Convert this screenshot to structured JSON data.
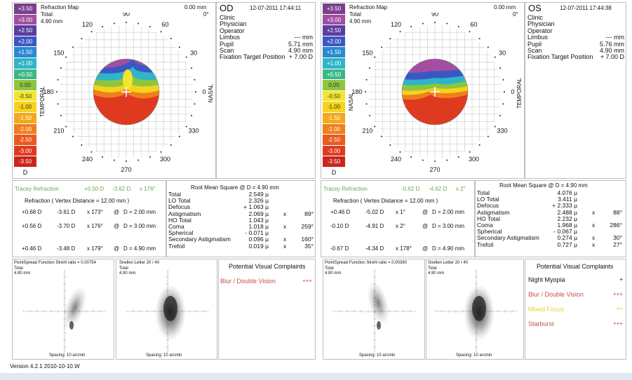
{
  "legend_values": [
    "+3.50",
    "+3.00",
    "+2.50",
    "+2.00",
    "+1.50",
    "+1.00",
    "+0.50",
    "0.00",
    "-0.50",
    "-1.00",
    "-1.50",
    "-2.00",
    "-2.50",
    "-3.00",
    "-3.50",
    "D"
  ],
  "legend_colors": [
    "#7b3f8c",
    "#a24fa1",
    "#5b3ea0",
    "#3b57c4",
    "#2a8ad0",
    "#2fb5c7",
    "#3cb886",
    "#8cc63f",
    "#f3e62a",
    "#f7d21c",
    "#f4a91a",
    "#ee7f1f",
    "#e95a1e",
    "#df3a1f",
    "#c9251e",
    "#ffffff"
  ],
  "od": {
    "map_title": "Refraction Map",
    "total_label": "Total",
    "size": "4.90 mm",
    "radius": "0.00 mm",
    "angle": "0°",
    "eye": "OD",
    "datetime": "12-07-2011 17:44:11",
    "left_side": "TEMPORAL",
    "right_side": "NASAL",
    "info": [
      {
        "label": "Clinic",
        "value": ""
      },
      {
        "label": "Physician",
        "value": ""
      },
      {
        "label": "Operator",
        "value": ""
      },
      {
        "label": "Limbus",
        "value": "--- mm"
      },
      {
        "label": "Pupil",
        "value": "5.71 mm"
      },
      {
        "label": "Scan",
        "value": "4.90 mm"
      },
      {
        "label": "Fixation Target Position",
        "value": "+ 7.00 D"
      }
    ],
    "tracey": {
      "label": "Tracey Refraction",
      "sph": "+0.50 D",
      "cyl": "-3.62 D",
      "axis": "x 176°"
    },
    "refraction_header": "Refraction ( Vertex Distance = 12.00 mm )",
    "refractions": [
      {
        "sph": "+0.68 D",
        "cyl": "-3.61 D",
        "axis": "x 173°",
        "at": "@",
        "d": "D = 2.00 mm"
      },
      {
        "sph": "+0.56 D",
        "cyl": "-3.70 D",
        "axis": "x 176°",
        "at": "@",
        "d": "D = 3.00 mm"
      },
      {
        "sph": "+0.46 D",
        "cyl": "-3.48 D",
        "axis": "x 179°",
        "at": "@",
        "d": "D = 4.90 mm"
      }
    ],
    "rms_title": "Root Mean Square @ D = 4.90 mm",
    "rms": [
      {
        "label": "Total",
        "value": "2.549 µ",
        "x": "",
        "deg": ""
      },
      {
        "label": "LO Total",
        "value": "2.326 µ",
        "x": "",
        "deg": ""
      },
      {
        "label": "Defocus",
        "value": "+ 1.063 µ",
        "x": "",
        "deg": ""
      },
      {
        "label": "Astigmatism",
        "value": "2.069 µ",
        "x": "x",
        "deg": "89°"
      },
      {
        "label": "HO Total",
        "value": "1.043 µ",
        "x": "",
        "deg": ""
      },
      {
        "label": "Coma",
        "value": "1.018 µ",
        "x": "x",
        "deg": "259°"
      },
      {
        "label": "Spherical",
        "value": "- 0.071 µ",
        "x": "",
        "deg": ""
      },
      {
        "label": "Secondary Astigmatism",
        "value": "0.096 µ",
        "x": "x",
        "deg": "160°"
      },
      {
        "label": "Trefoil",
        "value": "0.019 µ",
        "x": "x",
        "deg": "35°"
      }
    ],
    "psf_title": "PointSpread Function  Strehl ratio = 0.00754",
    "psf_total": "Total",
    "psf_size": "4.90 mm",
    "psf_spacing": "Spacing: 10 arcmin",
    "snellen_title": "Snellen Letter 20 / 40",
    "snellen_total": "Total",
    "snellen_size": "4.90 mm",
    "snellen_spacing": "Spacing: 10 arcmin",
    "complaints_title": "Potential Visual Complaints",
    "complaints": [
      {
        "label": "Blur / Double Vision",
        "level": "+++",
        "color": "#c0504d"
      }
    ]
  },
  "os": {
    "map_title": "Refraction Map",
    "total_label": "Total",
    "size": "4.90 mm",
    "radius": "0.00 mm",
    "angle": "0°",
    "eye": "OS",
    "datetime": "12-07-2011 17:44:38",
    "left_side": "NASAL",
    "right_side": "TEMPORAL",
    "info": [
      {
        "label": "Clinic",
        "value": ""
      },
      {
        "label": "Physician",
        "value": ""
      },
      {
        "label": "Operator",
        "value": ""
      },
      {
        "label": "Limbus",
        "value": "--- mm"
      },
      {
        "label": "Pupil",
        "value": "5.76 mm"
      },
      {
        "label": "Scan",
        "value": "4.90 mm"
      },
      {
        "label": "Fixation Target Position",
        "value": "+ 7.00 D"
      }
    ],
    "tracey": {
      "label": "Tracey Refraction",
      "sph": "-0.62 D",
      "cyl": "-4.62 D",
      "axis": "x 2°"
    },
    "refraction_header": "Refraction ( Vertex Distance = 12.00 mm )",
    "refractions": [
      {
        "sph": "+0.46 D",
        "cyl": "-5.02 D",
        "axis": "x 1°",
        "at": "@",
        "d": "D = 2.00 mm"
      },
      {
        "sph": "-0.10 D",
        "cyl": "-4.91 D",
        "axis": "x 2°",
        "at": "@",
        "d": "D = 3.00 mm"
      },
      {
        "sph": "-0.67 D",
        "cyl": "-4.34 D",
        "axis": "x 178°",
        "at": "@",
        "d": "D = 4.90 mm"
      }
    ],
    "rms_title": "Root Mean Square @ D = 4.90 mm",
    "rms": [
      {
        "label": "Total",
        "value": "4.076 µ",
        "x": "",
        "deg": ""
      },
      {
        "label": "LO Total",
        "value": "3.411 µ",
        "x": "",
        "deg": ""
      },
      {
        "label": "Defocus",
        "value": "+ 2.333 µ",
        "x": "",
        "deg": ""
      },
      {
        "label": "Astigmatism",
        "value": "2.488 µ",
        "x": "x",
        "deg": "88°"
      },
      {
        "label": "HO Total",
        "value": "2.232 µ",
        "x": "",
        "deg": ""
      },
      {
        "label": "Coma",
        "value": "1.968 µ",
        "x": "x",
        "deg": "286°"
      },
      {
        "label": "Spherical",
        "value": "- 0.067 µ",
        "x": "",
        "deg": ""
      },
      {
        "label": "Secondary Astigmatism",
        "value": "0.274 µ",
        "x": "x",
        "deg": "30°"
      },
      {
        "label": "Trefoil",
        "value": "0.727 µ",
        "x": "x",
        "deg": "27°"
      }
    ],
    "psf_title": "PointSpread Function  Strehl ratio = 0.00390",
    "psf_total": "Total",
    "psf_size": "4.90 mm",
    "psf_spacing": "Spacing: 10 arcmin",
    "snellen_title": "Snellen Letter 20 / 40",
    "snellen_total": "Total",
    "snellen_size": "4.90 mm",
    "snellen_spacing": "Spacing: 10 arcmin",
    "complaints_title": "Potential Visual Complaints",
    "complaints": [
      {
        "label": "Night Myopia",
        "level": "+",
        "color": "#111111"
      },
      {
        "label": "Blur / Double Vision",
        "level": "+++",
        "color": "#c0504d"
      },
      {
        "label": "Mixed Focus",
        "level": "++",
        "color": "#e6d229"
      },
      {
        "label": "Starburst",
        "level": "+++",
        "color": "#c0504d"
      }
    ]
  },
  "angles": [
    "90",
    "60",
    "30",
    "0",
    "330",
    "300",
    "270",
    "240",
    "210",
    "180",
    "150",
    "120"
  ],
  "version": "Version 4.2.1 2010-10-10.W"
}
